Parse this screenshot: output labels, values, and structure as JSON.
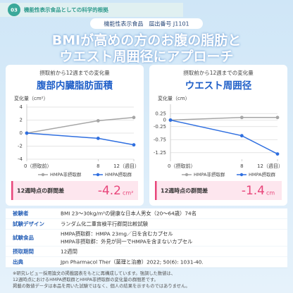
{
  "header": {
    "badge": "03",
    "section": "機能性表示食品としての科学的根拠",
    "notice": "機能性表示食品　届出番号 J1101",
    "title_lines": [
      "BMIが高めの方のお腹の脂肪と",
      "ウエスト周囲径にアプローチ"
    ]
  },
  "chart_data": [
    {
      "type": "line",
      "subtitle": "摂取前から12週までの変化量",
      "title": "腹部内臓脂肪面積",
      "y_label": "変化量（cm²）",
      "x": [
        0,
        8,
        12
      ],
      "xlim": [
        0,
        12
      ],
      "xticks": [
        {
          "value": 0,
          "label": "0（摂取前）"
        },
        8,
        {
          "value": 12,
          "label": "12（週目）"
        }
      ],
      "ylim": [
        -4,
        4
      ],
      "yticks": [
        4,
        2,
        0,
        -2,
        -4
      ],
      "grid": true,
      "series": [
        {
          "name": "HMPA非摂取群",
          "color": "#a6a6a6",
          "values": [
            0,
            1.9,
            2.4
          ]
        },
        {
          "name": "HMPA摂取群",
          "color": "#2f6fe0",
          "values": [
            0,
            -0.8,
            -1.8
          ]
        }
      ],
      "difference_label": "12週時点の群間差",
      "difference": "-4.2",
      "difference_unit": "cm²"
    },
    {
      "type": "line",
      "subtitle": "摂取前から12週までの変化量",
      "title": "ウエスト周囲径",
      "y_label": "変化量（cm）",
      "x": [
        0,
        8,
        12
      ],
      "xlim": [
        0,
        12
      ],
      "xticks": [
        {
          "value": 0,
          "label": "0（摂取前）"
        },
        8,
        {
          "value": 12,
          "label": "12（週目）"
        }
      ],
      "ylim": [
        -1.5,
        0.5
      ],
      "yticks": [
        0.25,
        0,
        -0.25,
        -0.75,
        -1.25
      ],
      "grid": true,
      "series": [
        {
          "name": "HMPA非摂取群",
          "color": "#a6a6a6",
          "values": [
            0,
            0.1,
            0.1
          ]
        },
        {
          "name": "HMPA摂取群",
          "color": "#2f6fe0",
          "values": [
            0,
            -0.6,
            -1.3
          ]
        }
      ],
      "difference_label": "12週時点の群間差",
      "difference": "-1.4",
      "difference_unit": "cm"
    }
  ],
  "table": {
    "rows": [
      [
        "被験者",
        "BMI 23～30kg/m²の健康な日本人男女（20～64歳）74名"
      ],
      [
        "試験デザイン",
        "ランダム化二重盲検平行群間比較試験"
      ],
      [
        "試験食品",
        "HMPA摂取群：HMPA 23mg／日を含むカプセル",
        "HMPA非摂取群：外見が同一でHMPAを含まないカプセル"
      ],
      [
        "摂取期間",
        "12週間"
      ],
      [
        "出典",
        "Jpn Pharmacol Ther（薬理と治療）2022; 50(6): 1031-40."
      ]
    ]
  },
  "footnotes": [
    "※研究レビュー採用論文の掲載図表をもとに再構成しています。強調した数値は、",
    "12週時点におけるHMPA摂取群とHMPA非摂取群の変化量の群間差です。",
    "掲載の数値データは本品を用いた試験ではなく、個人の結果を示すものではありません。"
  ]
}
